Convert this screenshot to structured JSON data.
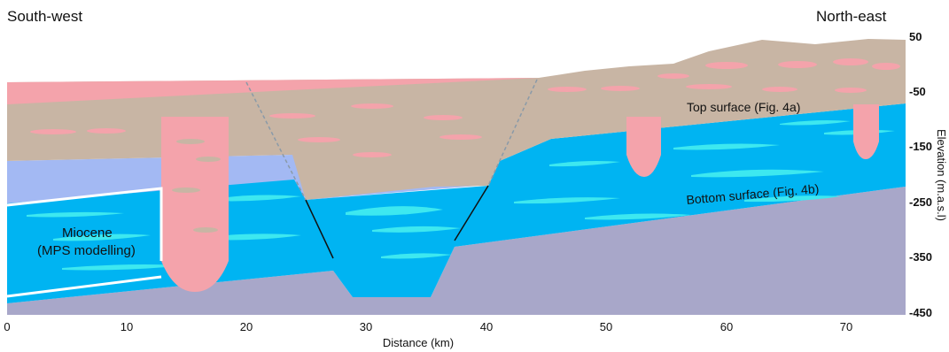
{
  "corner_labels": {
    "left": "South-west",
    "right": "North-east"
  },
  "units": {
    "miocene_line1": "Miocene",
    "miocene_line2": "(MPS modelling)"
  },
  "surfaces": {
    "top": "Top surface (Fig. 4a)",
    "bottom": "Bottom surface (Fig. 4b)"
  },
  "x_axis": {
    "title": "Distance (km)",
    "ticks": [
      "0",
      "10",
      "20",
      "30",
      "40",
      "50",
      "60",
      "70"
    ]
  },
  "y_axis": {
    "title": "Elevation (m.a.s.l)",
    "ticks": [
      "50",
      "-50",
      "-150",
      "-250",
      "-350",
      "-450"
    ]
  },
  "colors": {
    "pink": "#f4a3ab",
    "tan": "#c8b5a4",
    "light_blue": "#a3b9f3",
    "cyan": "#00b4f2",
    "cyan_light": "#3de8f0",
    "basement": "#a8a7c9",
    "fault": "#111111",
    "surface": "#ffffff"
  }
}
